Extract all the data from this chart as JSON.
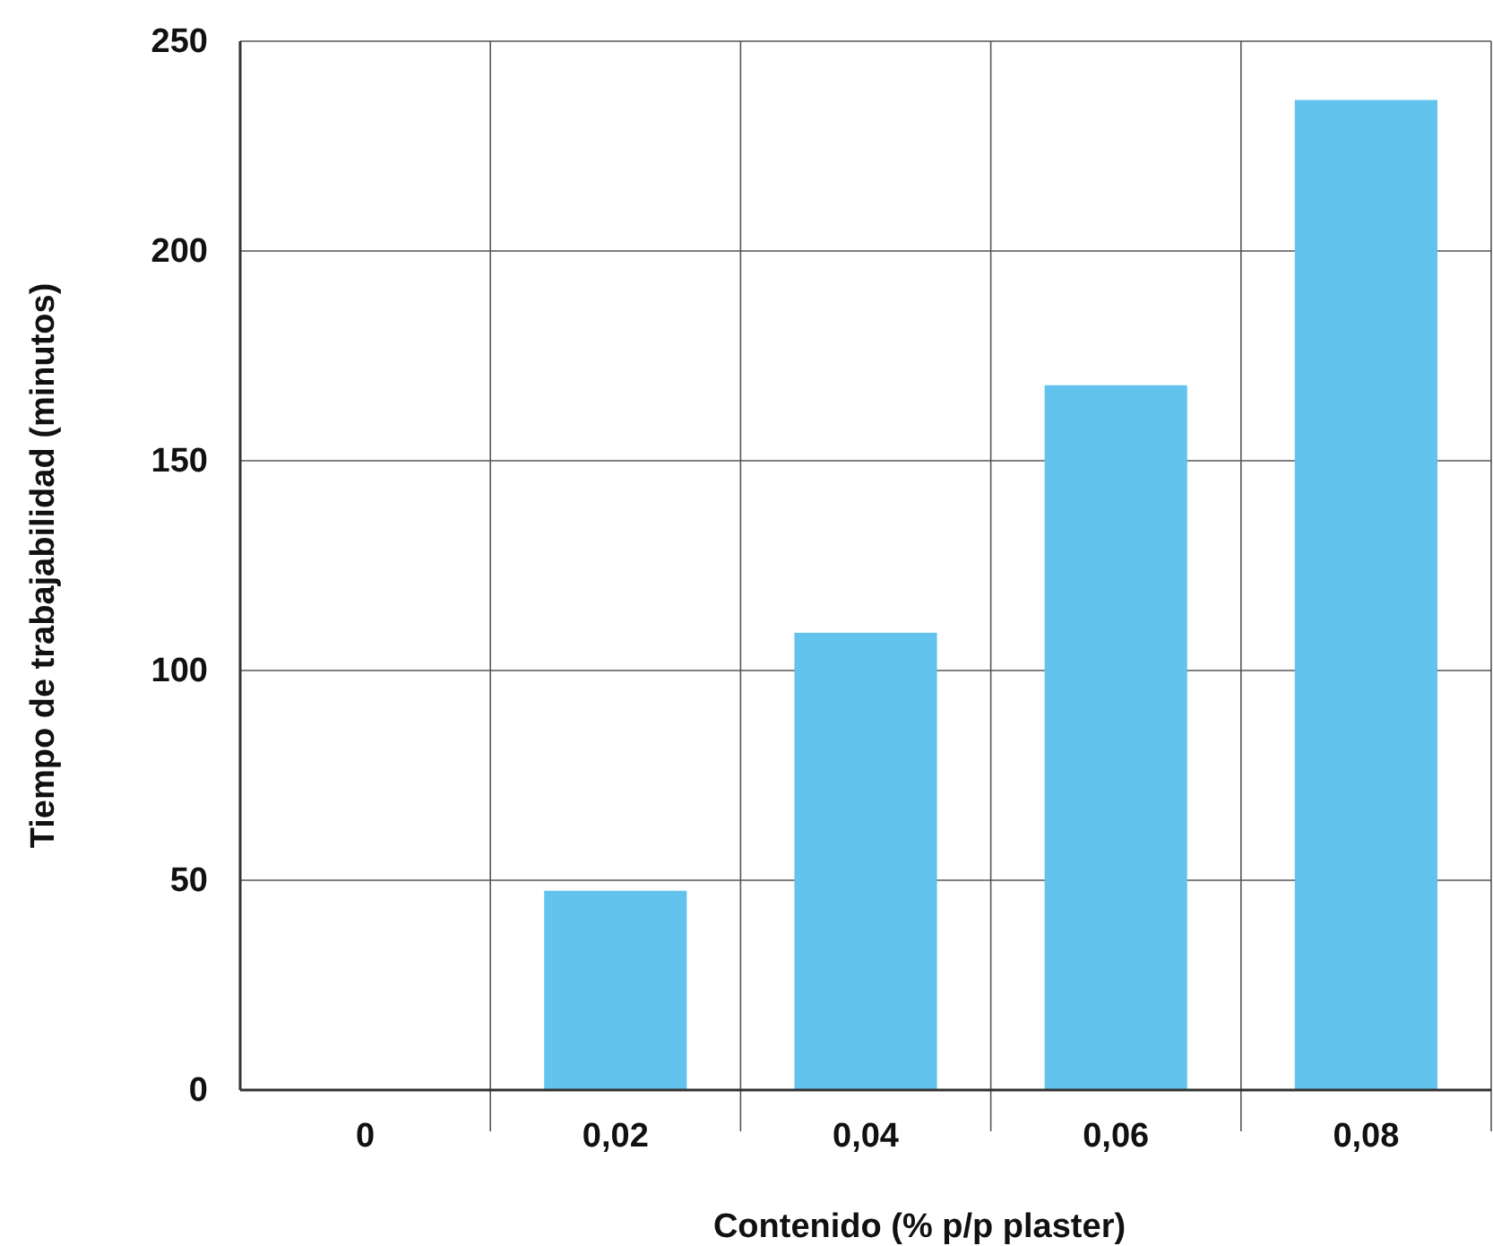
{
  "chart_data": {
    "type": "bar",
    "xlabel": "Contenido (% p/p plaster)",
    "ylabel": "Tiempo de trabajabilidad (minutos)",
    "categories": [
      "0",
      "0,02",
      "0,04",
      "0,06",
      "0,08"
    ],
    "values": [
      0,
      47.5,
      109,
      168,
      236
    ],
    "color": "#62c3ec",
    "ylim": [
      0,
      250
    ],
    "yticks": [
      0,
      50,
      100,
      150,
      200,
      250
    ],
    "grid": true
  }
}
